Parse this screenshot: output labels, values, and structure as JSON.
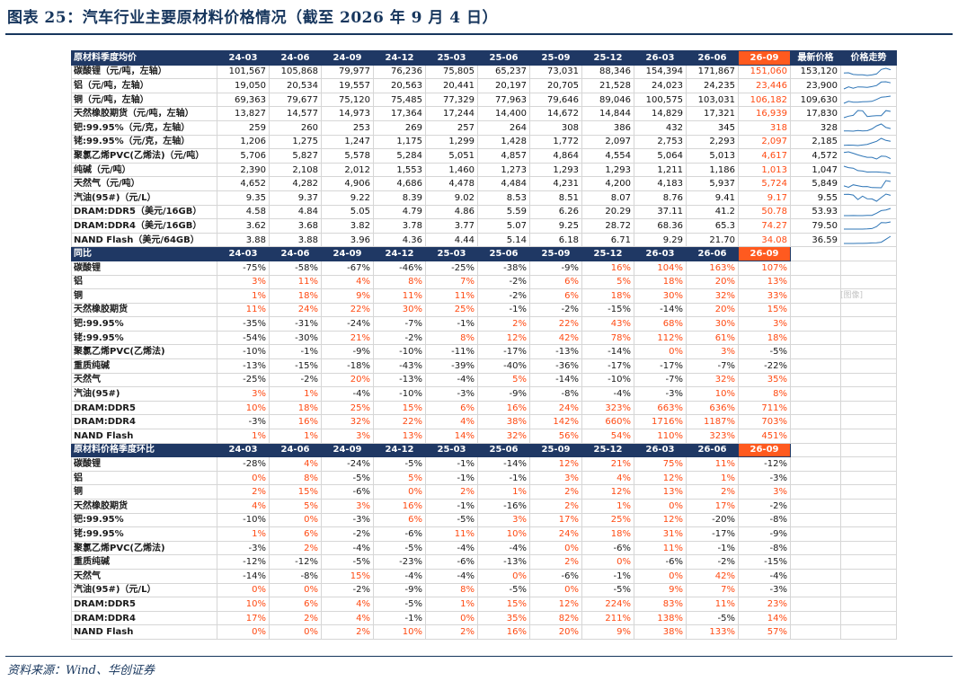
{
  "title": "图表 25：汽车行业主要原材料价格情况（截至 2026 年 9 月 4 日）",
  "source": "资料来源：Wind、华创证券",
  "watermark": "[图像]",
  "colors": {
    "header_bg": "#1f3864",
    "highlight": "#ff5a1f",
    "positive": "#ff4a12",
    "negative": "#1a1a1a",
    "sparkline": "#2e75b6"
  },
  "periods": [
    "24-03",
    "24-06",
    "24-09",
    "24-12",
    "25-03",
    "25-06",
    "25-09",
    "25-12",
    "26-03",
    "26-06",
    "26-09"
  ],
  "section_price": {
    "header": "原材料季度均价",
    "latest_label": "最新价格",
    "trend_label": "价格走势",
    "rows": [
      {
        "name": "碳酸锂（元/吨，左轴）",
        "values": [
          "101,567",
          "105,868",
          "79,977",
          "76,236",
          "75,805",
          "65,237",
          "73,031",
          "88,346",
          "154,394",
          "171,867",
          "151,060"
        ],
        "latest": "153,120"
      },
      {
        "name": "铝（元/吨，左轴）",
        "values": [
          "19,050",
          "20,534",
          "19,557",
          "20,563",
          "20,441",
          "20,197",
          "20,705",
          "21,528",
          "24,023",
          "24,235",
          "23,446"
        ],
        "latest": "23,900"
      },
      {
        "name": "铜（元/吨，左轴）",
        "values": [
          "69,363",
          "79,677",
          "75,120",
          "75,485",
          "77,329",
          "77,963",
          "79,646",
          "89,046",
          "100,575",
          "103,031",
          "106,182"
        ],
        "latest": "109,630"
      },
      {
        "name": "天然橡胶期货（元/吨，左轴）",
        "values": [
          "13,827",
          "14,577",
          "14,973",
          "17,364",
          "17,244",
          "14,400",
          "14,672",
          "14,844",
          "14,829",
          "17,321",
          "16,939"
        ],
        "latest": "17,830"
      },
      {
        "name": "钯:99.95%（元/克，左轴）",
        "values": [
          "259",
          "260",
          "253",
          "269",
          "257",
          "264",
          "308",
          "386",
          "432",
          "345",
          "318"
        ],
        "latest": "328"
      },
      {
        "name": "铑:99.95%（元/克，左轴）",
        "values": [
          "1,206",
          "1,275",
          "1,247",
          "1,175",
          "1,299",
          "1,428",
          "1,772",
          "2,097",
          "2,753",
          "2,293",
          "2,097"
        ],
        "latest": "2,185"
      },
      {
        "name": "聚氯乙烯PVC(乙烯法)（元/吨）",
        "values": [
          "5,706",
          "5,827",
          "5,578",
          "5,284",
          "5,051",
          "4,857",
          "4,864",
          "4,554",
          "5,064",
          "5,013",
          "4,617"
        ],
        "latest": "4,572"
      },
      {
        "name": "纯碱（元/吨）",
        "values": [
          "2,390",
          "2,108",
          "2,012",
          "1,553",
          "1,460",
          "1,273",
          "1,293",
          "1,293",
          "1,211",
          "1,186",
          "1,013"
        ],
        "latest": "1,047"
      },
      {
        "name": "天然气（元/吨）",
        "values": [
          "4,652",
          "4,282",
          "4,906",
          "4,686",
          "4,478",
          "4,484",
          "4,231",
          "4,200",
          "4,183",
          "5,937",
          "5,724"
        ],
        "latest": "5,849"
      },
      {
        "name": "汽油(95#)（元/L）",
        "values": [
          "9.35",
          "9.37",
          "9.22",
          "8.39",
          "9.02",
          "8.53",
          "8.51",
          "8.07",
          "8.76",
          "9.41",
          "9.17"
        ],
        "latest": "9.55"
      },
      {
        "name": "DRAM:DDR5（美元/16GB）",
        "values": [
          "4.58",
          "4.84",
          "5.05",
          "4.79",
          "4.86",
          "5.59",
          "6.26",
          "20.29",
          "37.11",
          "41.2",
          "50.78"
        ],
        "latest": "53.93"
      },
      {
        "name": "DRAM:DDR4（美元/16GB）",
        "values": [
          "3.62",
          "3.68",
          "3.82",
          "3.78",
          "3.77",
          "5.07",
          "9.25",
          "28.72",
          "68.36",
          "65.3",
          "74.27"
        ],
        "latest": "79.50"
      },
      {
        "name": "NAND Flash（美元/64GB）",
        "values": [
          "3.88",
          "3.88",
          "3.96",
          "4.36",
          "4.44",
          "5.14",
          "6.18",
          "6.71",
          "9.29",
          "21.70",
          "34.08"
        ],
        "latest": "36.59"
      }
    ]
  },
  "section_yoy": {
    "header": "同比",
    "rows": [
      {
        "name": "碳酸锂",
        "values": [
          "-75%",
          "-58%",
          "-67%",
          "-46%",
          "-25%",
          "-38%",
          "-9%",
          "16%",
          "104%",
          "163%",
          "107%"
        ]
      },
      {
        "name": "铝",
        "values": [
          "3%",
          "11%",
          "4%",
          "8%",
          "7%",
          "-2%",
          "6%",
          "5%",
          "18%",
          "20%",
          "13%"
        ]
      },
      {
        "name": "铜",
        "values": [
          "1%",
          "18%",
          "9%",
          "11%",
          "11%",
          "-2%",
          "6%",
          "18%",
          "30%",
          "32%",
          "33%"
        ]
      },
      {
        "name": "天然橡胶期货",
        "values": [
          "11%",
          "24%",
          "22%",
          "30%",
          "25%",
          "-1%",
          "-2%",
          "-15%",
          "-14%",
          "20%",
          "15%"
        ]
      },
      {
        "name": "钯:99.95%",
        "values": [
          "-35%",
          "-31%",
          "-24%",
          "-7%",
          "-1%",
          "2%",
          "22%",
          "43%",
          "68%",
          "30%",
          "3%"
        ]
      },
      {
        "name": "铑:99.95%",
        "values": [
          "-54%",
          "-30%",
          "21%",
          "-2%",
          "8%",
          "12%",
          "42%",
          "78%",
          "112%",
          "61%",
          "18%"
        ]
      },
      {
        "name": "聚氯乙烯PVC(乙烯法)",
        "values": [
          "-10%",
          "-1%",
          "-9%",
          "-10%",
          "-11%",
          "-17%",
          "-13%",
          "-14%",
          "0%",
          "3%",
          "-5%"
        ]
      },
      {
        "name": "重质纯碱",
        "values": [
          "-13%",
          "-15%",
          "-18%",
          "-43%",
          "-39%",
          "-40%",
          "-36%",
          "-17%",
          "-17%",
          "-7%",
          "-22%"
        ]
      },
      {
        "name": "天然气",
        "values": [
          "-25%",
          "-2%",
          "20%",
          "-13%",
          "-4%",
          "5%",
          "-14%",
          "-10%",
          "-7%",
          "32%",
          "35%"
        ]
      },
      {
        "name": "汽油(95#)",
        "values": [
          "3%",
          "1%",
          "-4%",
          "-10%",
          "-3%",
          "-9%",
          "-8%",
          "-4%",
          "-3%",
          "10%",
          "8%"
        ]
      },
      {
        "name": "DRAM:DDR5",
        "values": [
          "10%",
          "18%",
          "25%",
          "15%",
          "6%",
          "16%",
          "24%",
          "323%",
          "663%",
          "636%",
          "711%"
        ]
      },
      {
        "name": "DRAM:DDR4",
        "values": [
          "-3%",
          "16%",
          "32%",
          "22%",
          "4%",
          "38%",
          "142%",
          "660%",
          "1716%",
          "1187%",
          "703%"
        ]
      },
      {
        "name": "NAND Flash",
        "values": [
          "1%",
          "1%",
          "3%",
          "13%",
          "14%",
          "32%",
          "56%",
          "54%",
          "110%",
          "323%",
          "451%"
        ]
      }
    ]
  },
  "section_qoq": {
    "header": "原材料价格季度环比",
    "rows": [
      {
        "name": "碳酸锂",
        "values": [
          "-28%",
          "4%",
          "-24%",
          "-5%",
          "-1%",
          "-14%",
          "12%",
          "21%",
          "75%",
          "11%",
          "-12%"
        ]
      },
      {
        "name": "铝",
        "values": [
          "0%",
          "8%",
          "-5%",
          "5%",
          "-1%",
          "-1%",
          "3%",
          "4%",
          "12%",
          "1%",
          "-3%"
        ]
      },
      {
        "name": "铜",
        "values": [
          "2%",
          "15%",
          "-6%",
          "0%",
          "2%",
          "1%",
          "2%",
          "12%",
          "13%",
          "2%",
          "3%"
        ]
      },
      {
        "name": "天然橡胶期货",
        "values": [
          "4%",
          "5%",
          "3%",
          "16%",
          "-1%",
          "-16%",
          "2%",
          "1%",
          "0%",
          "17%",
          "-2%"
        ]
      },
      {
        "name": "钯:99.95%",
        "values": [
          "-10%",
          "0%",
          "-3%",
          "6%",
          "-5%",
          "3%",
          "17%",
          "25%",
          "12%",
          "-20%",
          "-8%"
        ]
      },
      {
        "name": "铑:99.95%",
        "values": [
          "1%",
          "6%",
          "-2%",
          "-6%",
          "11%",
          "10%",
          "24%",
          "18%",
          "31%",
          "-17%",
          "-9%"
        ]
      },
      {
        "name": "聚氯乙烯PVC(乙烯法)",
        "values": [
          "-3%",
          "2%",
          "-4%",
          "-5%",
          "-4%",
          "-4%",
          "0%",
          "-6%",
          "11%",
          "-1%",
          "-8%"
        ]
      },
      {
        "name": "重质纯碱",
        "values": [
          "-12%",
          "-12%",
          "-5%",
          "-23%",
          "-6%",
          "-13%",
          "2%",
          "0%",
          "-6%",
          "-2%",
          "-15%"
        ]
      },
      {
        "name": "天然气",
        "values": [
          "-14%",
          "-8%",
          "15%",
          "-4%",
          "-4%",
          "0%",
          "-6%",
          "-1%",
          "0%",
          "42%",
          "-4%"
        ]
      },
      {
        "name": "汽油(95#)（元/L）",
        "values": [
          "0%",
          "0%",
          "-2%",
          "-9%",
          "8%",
          "-5%",
          "0%",
          "-5%",
          "9%",
          "7%",
          "-3%"
        ]
      },
      {
        "name": "DRAM:DDR5",
        "values": [
          "10%",
          "6%",
          "4%",
          "-5%",
          "1%",
          "15%",
          "12%",
          "224%",
          "83%",
          "11%",
          "23%"
        ]
      },
      {
        "name": "DRAM:DDR4",
        "values": [
          "17%",
          "2%",
          "4%",
          "-1%",
          "0%",
          "35%",
          "82%",
          "211%",
          "138%",
          "-5%",
          "14%"
        ]
      },
      {
        "name": "NAND Flash",
        "values": [
          "0%",
          "0%",
          "2%",
          "10%",
          "2%",
          "16%",
          "20%",
          "9%",
          "38%",
          "133%",
          "57%"
        ]
      }
    ]
  }
}
